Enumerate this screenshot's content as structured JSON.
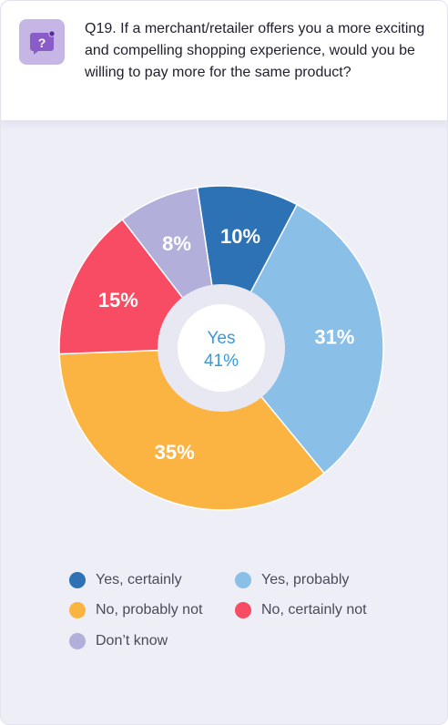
{
  "question": {
    "text": "Q19. If a merchant/retailer offers you a more exciting and compelling shopping experience, would you be willing to pay more for the same product?",
    "icon": "question-bubble-icon"
  },
  "center": {
    "line1": "Yes",
    "line2": "41%",
    "color": "#3a9ad9"
  },
  "chart_data": {
    "type": "pie",
    "categories": [
      "Yes, certainly",
      "Yes, probably",
      "No, probably not",
      "No, certainly not",
      "Don’t know"
    ],
    "values": [
      10,
      31,
      35,
      15,
      8
    ],
    "value_labels": [
      "10%",
      "31%",
      "35%",
      "15%",
      "8%"
    ],
    "colors": [
      "#2e72b6",
      "#8ac0e8",
      "#fbb441",
      "#f74c63",
      "#b2b0da"
    ],
    "donut": true,
    "legend_position": "bottom"
  }
}
